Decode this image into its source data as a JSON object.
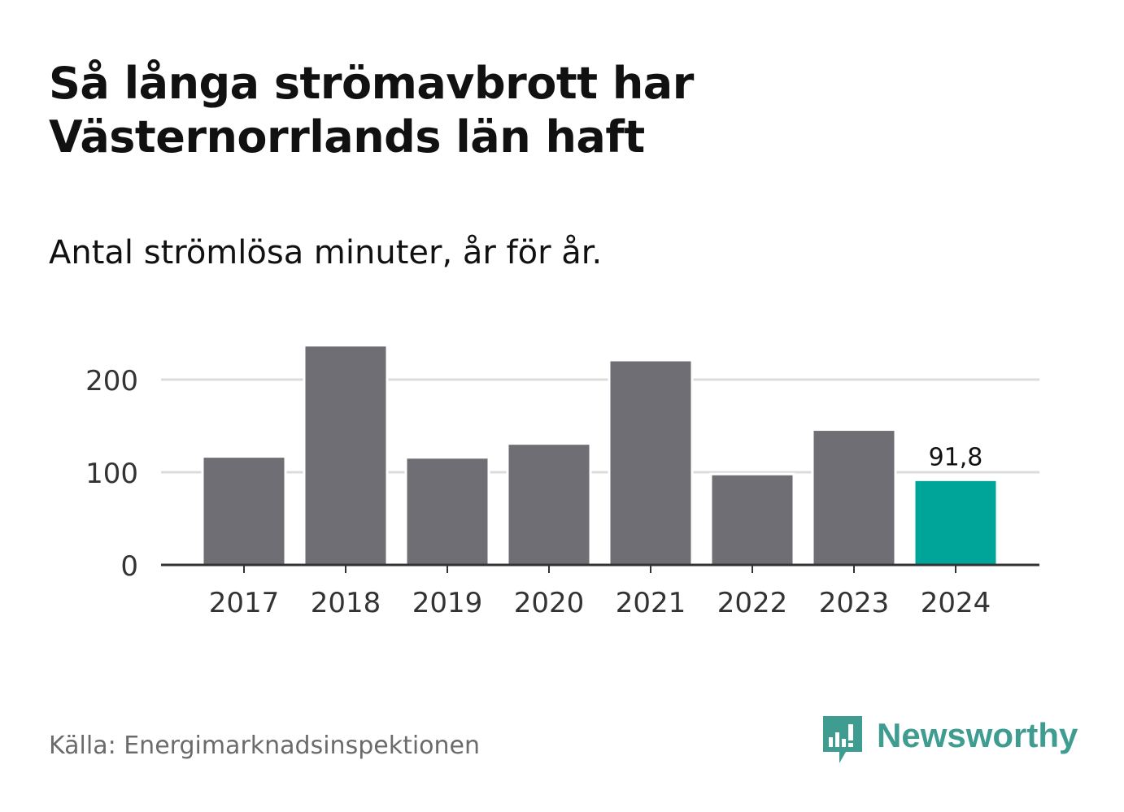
{
  "title": "Så långa strömavbrott har Västernorrlands län haft",
  "subtitle": "Antal strömlösa minuter, år för år.",
  "source": "Källa: Energimarknadsinspektionen",
  "logo": {
    "text": "Newsworthy",
    "icon": "bar-chart-speech-bubble-icon",
    "color": "#3f9c91"
  },
  "colors": {
    "bar_default": "#6f6e74",
    "bar_highlight": "#00a59a",
    "gridline": "#dcdcdc",
    "axis": "#333333"
  },
  "chart_data": {
    "type": "bar",
    "title": "Så långa strömavbrott har Västernorrlands län haft",
    "subtitle": "Antal strömlösa minuter, år för år.",
    "xlabel": "",
    "ylabel": "",
    "categories": [
      "2017",
      "2018",
      "2019",
      "2020",
      "2021",
      "2022",
      "2023",
      "2024"
    ],
    "values": [
      117,
      237,
      116,
      131,
      221,
      98,
      146,
      91.8
    ],
    "highlight_index": 7,
    "data_labels": [
      {
        "index": 7,
        "text": "91,8"
      }
    ],
    "ylim": [
      0,
      240
    ],
    "yticks": [
      0,
      100,
      200
    ],
    "ytick_labels": [
      "0",
      "100",
      "200"
    ],
    "grid": true
  }
}
